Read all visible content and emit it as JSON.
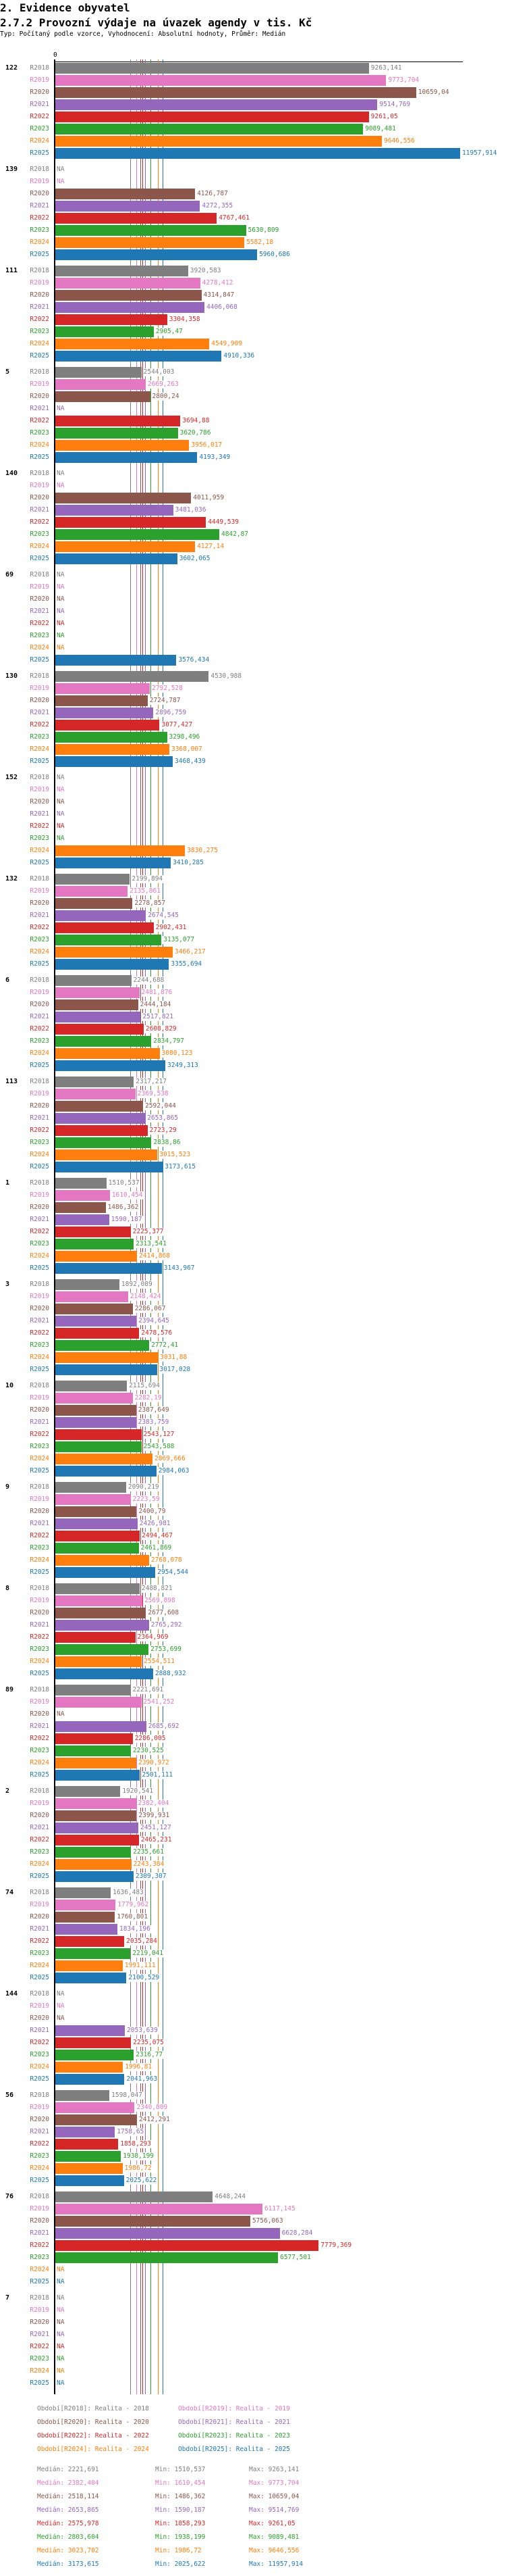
{
  "header": {
    "section": "2. Evidence obyvatel",
    "title": "2.7.2 Provozní výdaje na úvazek agendy v tis. Kč",
    "subtitle": "Typ: Počítaný podle vzorce, Vyhodnocení: Absolutní hodnoty, Průměr: Medián"
  },
  "chart_data": {
    "type": "bar",
    "orientation": "horizontal",
    "title": "2.7.2 Provozní výdaje na úvazek agendy v tis. Kč",
    "xlim": [
      0,
      11957.914
    ],
    "x_tick_label": "0",
    "series": [
      {
        "key": "R2018",
        "color": "#7f7f7f",
        "legend": "Období[R2018]: Realita - 2018"
      },
      {
        "key": "R2019",
        "color": "#e377c2",
        "legend": "Období[R2019]: Realita - 2019"
      },
      {
        "key": "R2020",
        "color": "#8c564b",
        "legend": "Období[R2020]: Realita - 2020"
      },
      {
        "key": "R2021",
        "color": "#9467bd",
        "legend": "Období[R2021]: Realita - 2021"
      },
      {
        "key": "R2022",
        "color": "#d62728",
        "legend": "Období[R2022]: Realita - 2022"
      },
      {
        "key": "R2023",
        "color": "#2ca02c",
        "legend": "Období[R2023]: Realita - 2023"
      },
      {
        "key": "R2024",
        "color": "#ff7f0e",
        "legend": "Období[R2024]: Realita - 2024"
      },
      {
        "key": "R2025",
        "color": "#1f77b4",
        "legend": "Období[R2025]: Realita - 2025"
      }
    ],
    "na_label": "NA",
    "groups": [
      {
        "label": "122",
        "values": [
          "9263,141",
          "9773,704",
          "10659,04",
          "9514,769",
          "9261,05",
          "9089,481",
          "9646,556",
          "11957,914"
        ]
      },
      {
        "label": "139",
        "values": [
          null,
          null,
          "4126,787",
          "4272,355",
          "4767,461",
          "5630,809",
          "5582,18",
          "5960,686"
        ]
      },
      {
        "label": "111",
        "values": [
          "3920,583",
          "4278,412",
          "4314,847",
          "4406,068",
          "3304,358",
          "2905,47",
          "4549,909",
          "4910,336"
        ]
      },
      {
        "label": "5",
        "values": [
          "2544,003",
          "2669,263",
          "2800,24",
          null,
          "3694,88",
          "3620,786",
          "3956,017",
          "4193,349"
        ]
      },
      {
        "label": "140",
        "values": [
          null,
          null,
          "4011,959",
          "3481,036",
          "4449,539",
          "4842,87",
          "4127,14",
          "3602,065"
        ]
      },
      {
        "label": "69",
        "values": [
          null,
          null,
          null,
          null,
          null,
          null,
          null,
          "3576,434"
        ]
      },
      {
        "label": "130",
        "values": [
          "4530,988",
          "2792,528",
          "2724,787",
          "2896,759",
          "3077,427",
          "3298,496",
          "3368,007",
          "3468,439"
        ]
      },
      {
        "label": "152",
        "values": [
          null,
          null,
          null,
          null,
          null,
          null,
          "3830,275",
          "3410,285"
        ]
      },
      {
        "label": "132",
        "values": [
          "2199,894",
          "2135,861",
          "2278,857",
          "2674,545",
          "2902,431",
          "3135,077",
          "3466,217",
          "3355,694"
        ]
      },
      {
        "label": "6",
        "values": [
          "2244,688",
          "2481,876",
          "2444,184",
          "2517,821",
          "2608,829",
          "2834,797",
          "3080,123",
          "3249,313"
        ]
      },
      {
        "label": "113",
        "values": [
          "2317,217",
          "2369,538",
          "2592,044",
          "2653,865",
          "2723,29",
          "2838,86",
          "3015,523",
          "3173,615"
        ]
      },
      {
        "label": "1",
        "values": [
          "1510,537",
          "1610,454",
          "1486,362",
          "1590,187",
          "2225,377",
          "2313,541",
          "2414,868",
          "3143,967"
        ]
      },
      {
        "label": "3",
        "values": [
          "1892,089",
          "2148,424",
          "2286,067",
          "2394,645",
          "2478,576",
          "2772,41",
          "3031,88",
          "3017,028"
        ]
      },
      {
        "label": "10",
        "values": [
          "2115,694",
          "2282,19",
          "2387,649",
          "2383,759",
          "2543,127",
          "2543,588",
          "2869,666",
          "2984,063"
        ]
      },
      {
        "label": "9",
        "values": [
          "2090,219",
          "2223,59",
          "2400,79",
          "2426,981",
          "2494,467",
          "2461,869",
          "2768,078",
          "2954,544"
        ]
      },
      {
        "label": "8",
        "values": [
          "2488,821",
          "2569,898",
          "2677,608",
          "2765,292",
          "2364,969",
          "2753,699",
          "2554,511",
          "2888,932"
        ]
      },
      {
        "label": "89",
        "values": [
          "2221,691",
          "2541,252",
          null,
          "2685,692",
          "2286,005",
          "2230,525",
          "2390,972",
          "2501,111"
        ]
      },
      {
        "label": "2",
        "values": [
          "1920,541",
          "2382,404",
          "2399,931",
          "2451,127",
          "2465,231",
          "2235,661",
          "2243,384",
          "2309,307"
        ]
      },
      {
        "label": "74",
        "values": [
          "1636,483",
          "1779,962",
          "1760,801",
          "1834,196",
          "2035,284",
          "2219,041",
          "1991,111",
          "2100,529"
        ]
      },
      {
        "label": "144",
        "values": [
          null,
          null,
          null,
          "2053,639",
          "2235,075",
          "2316,77",
          "1996,81",
          "2041,963"
        ]
      },
      {
        "label": "56",
        "values": [
          "1598,047",
          "2340,809",
          "2412,291",
          "1758,65",
          "1858,293",
          "1938,199",
          "1986,72",
          "2025,622"
        ]
      },
      {
        "label": "76",
        "values": [
          "4648,244",
          "6117,145",
          "5756,063",
          "6628,284",
          "7779,369",
          "6577,501",
          null,
          null
        ]
      },
      {
        "label": "7",
        "values": [
          null,
          null,
          null,
          null,
          null,
          null,
          null,
          null
        ]
      }
    ],
    "stats": [
      {
        "median": "Medián: 2221,691",
        "min": "Min: 1510,537",
        "max": "Max: 9263,141",
        "median_value": 2221.691
      },
      {
        "median": "Medián: 2382,404",
        "min": "Min: 1610,454",
        "max": "Max: 9773,704",
        "median_value": 2382.404
      },
      {
        "median": "Medián: 2518,114",
        "min": "Min: 1486,362",
        "max": "Max: 10659,04",
        "median_value": 2518.114
      },
      {
        "median": "Medián: 2653,865",
        "min": "Min: 1590,187",
        "max": "Max: 9514,769",
        "median_value": 2653.865
      },
      {
        "median": "Medián: 2575,978",
        "min": "Min: 1858,293",
        "max": "Max: 9261,05",
        "median_value": 2575.978
      },
      {
        "median": "Medián: 2803,604",
        "min": "Min: 1938,199",
        "max": "Max: 9089,481",
        "median_value": 2803.604
      },
      {
        "median": "Medián: 3023,702",
        "min": "Min: 1986,72",
        "max": "Max: 9646,556",
        "median_value": 3023.702
      },
      {
        "median": "Medián: 3173,615",
        "min": "Min: 2025,622",
        "max": "Max: 11957,914",
        "median_value": 3173.615
      }
    ]
  }
}
